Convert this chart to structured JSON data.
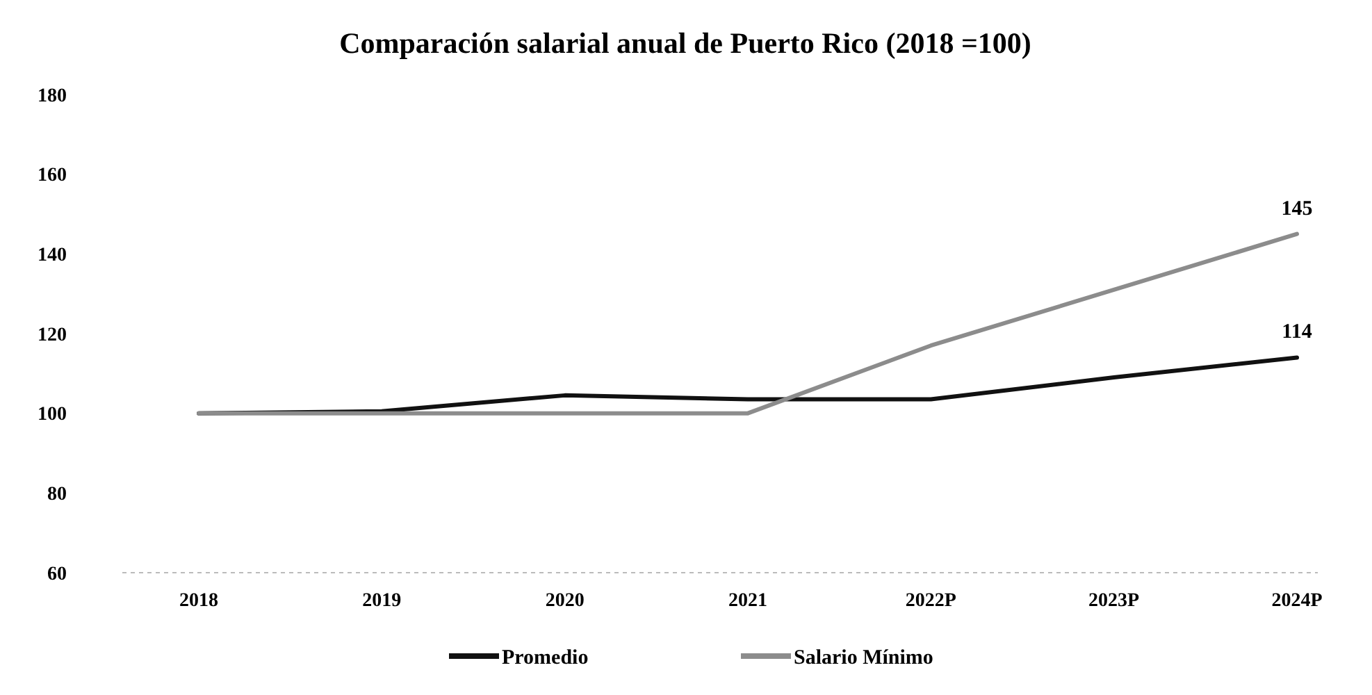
{
  "chart_data": {
    "type": "line",
    "title": "Comparación salarial anual de Puerto Rico (2018 =100)",
    "categories": [
      "2018",
      "2019",
      "2020",
      "2021",
      "2022P",
      "2023P",
      "2024P"
    ],
    "series": [
      {
        "name": "Promedio",
        "color": "#111111",
        "values": [
          100,
          100.5,
          104.5,
          103.5,
          103.5,
          109,
          114
        ],
        "value_labels": [
          null,
          null,
          null,
          null,
          null,
          null,
          "114"
        ]
      },
      {
        "name": "Salario Mínimo",
        "color": "#8c8c8c",
        "values": [
          100,
          100,
          100,
          100,
          117,
          131,
          145
        ],
        "value_labels": [
          null,
          null,
          null,
          null,
          null,
          null,
          "145"
        ]
      }
    ],
    "ylim": [
      60,
      180
    ],
    "yticks": [
      60,
      80,
      100,
      120,
      140,
      160,
      180
    ],
    "grid": false,
    "legend": "bottom",
    "marker": "none",
    "line_style": "solid"
  }
}
